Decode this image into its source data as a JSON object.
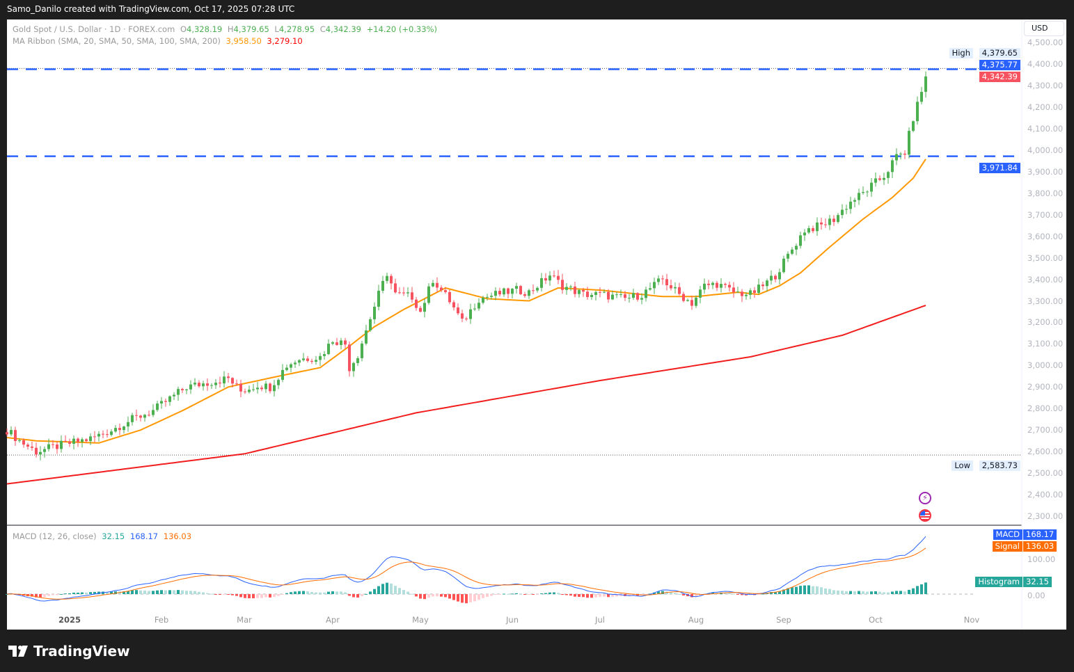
{
  "header": {
    "attribution": "Samo_Danilo created with TradingView.com, Oct 17, 2025 07:28 UTC"
  },
  "legend": {
    "symbol": "Gold Spot / U.S. Dollar · 1D · FOREX.com",
    "open_label": "O",
    "open": "4,328.19",
    "high_label": "H",
    "high": "4,379.65",
    "low_label": "L",
    "low": "4,278.95",
    "close_label": "C",
    "close": "4,342.39",
    "change": "+14.20 (+0.33%)",
    "ma_title": "MA Ribbon (SMA, 20, SMA, 50, SMA, 100, SMA, 200)",
    "ma20": "3,958.50",
    "ma200": "3,279.10"
  },
  "macd_legend": {
    "title": "MACD (12, 26, close)",
    "histogram": "32.15",
    "macd": "168.17",
    "signal": "136.03"
  },
  "price_axis": {
    "currency": "USD",
    "labels": [
      "4,500.00",
      "4,400.00",
      "4,300.00",
      "4,200.00",
      "4,100.00",
      "4,000.00",
      "3,900.00",
      "3,800.00",
      "3,700.00",
      "3,600.00",
      "3,500.00",
      "3,400.00",
      "3,300.00",
      "3,200.00",
      "3,100.00",
      "3,000.00",
      "2,900.00",
      "2,800.00",
      "2,700.00",
      "2,600.00",
      "2,500.00",
      "2,400.00",
      "2,300.00"
    ],
    "high_label": "High",
    "high_value": "4,379.65",
    "line1_value": "4,375.77",
    "last_price": "4,342.39",
    "line2_value": "3,971.84",
    "low_label": "Low",
    "low_value": "2,583.73"
  },
  "macd_axis": {
    "macd_label": "MACD",
    "macd_value": "168.17",
    "signal_label": "Signal",
    "signal_value": "136.03",
    "histogram_label": "Histogram",
    "histogram_value": "32.15",
    "labels": [
      "100.00",
      "0.00"
    ]
  },
  "time_axis": {
    "labels": [
      "2025",
      "Feb",
      "Mar",
      "Apr",
      "May",
      "Jun",
      "Jul",
      "Aug",
      "Sep",
      "Oct",
      "Nov"
    ]
  },
  "footer": {
    "brand": "TradingView"
  },
  "colors": {
    "up": "#4caf50",
    "down": "#f7525f",
    "sma20": "#ff9800",
    "sma200": "#f21d1d",
    "hline": "#2962ff",
    "macd": "#2962ff",
    "signal": "#ff6d00"
  },
  "chart_data": {
    "type": "candlestick",
    "title": "Gold Spot / U.S. Dollar · 1D",
    "x_unit": "trading-day index (0 = mid Dec 2024, 220 = Oct 16 2025)",
    "ylim": [
      2250,
      4520
    ],
    "close_anchors": [
      [
        0,
        2700
      ],
      [
        3,
        2650
      ],
      [
        7,
        2600
      ],
      [
        13,
        2630
      ],
      [
        20,
        2660
      ],
      [
        25,
        2700
      ],
      [
        30,
        2750
      ],
      [
        35,
        2790
      ],
      [
        40,
        2860
      ],
      [
        43,
        2900
      ],
      [
        48,
        2920
      ],
      [
        53,
        2940
      ],
      [
        56,
        2880
      ],
      [
        60,
        2910
      ],
      [
        63,
        2900
      ],
      [
        67,
        3000
      ],
      [
        70,
        3030
      ],
      [
        75,
        3040
      ],
      [
        78,
        3120
      ],
      [
        81,
        3100
      ],
      [
        82,
        2990
      ],
      [
        84,
        3050
      ],
      [
        87,
        3220
      ],
      [
        89,
        3330
      ],
      [
        91,
        3430
      ],
      [
        93,
        3330
      ],
      [
        97,
        3320
      ],
      [
        99,
        3250
      ],
      [
        102,
        3400
      ],
      [
        106,
        3300
      ],
      [
        109,
        3200
      ],
      [
        113,
        3310
      ],
      [
        117,
        3330
      ],
      [
        122,
        3350
      ],
      [
        125,
        3340
      ],
      [
        130,
        3420
      ],
      [
        133,
        3370
      ],
      [
        138,
        3330
      ],
      [
        142,
        3330
      ],
      [
        145,
        3320
      ],
      [
        148,
        3310
      ],
      [
        152,
        3330
      ],
      [
        157,
        3400
      ],
      [
        161,
        3330
      ],
      [
        164,
        3290
      ],
      [
        167,
        3370
      ],
      [
        170,
        3380
      ],
      [
        174,
        3340
      ],
      [
        178,
        3330
      ],
      [
        181,
        3370
      ],
      [
        184,
        3420
      ],
      [
        188,
        3540
      ],
      [
        191,
        3630
      ],
      [
        195,
        3650
      ],
      [
        198,
        3680
      ],
      [
        202,
        3760
      ],
      [
        205,
        3800
      ],
      [
        208,
        3850
      ],
      [
        210,
        3880
      ],
      [
        213,
        3970
      ],
      [
        215,
        3990
      ],
      [
        217,
        4150
      ],
      [
        218,
        4210
      ],
      [
        220,
        4342.39
      ]
    ],
    "sma20_anchors": [
      [
        0,
        2665
      ],
      [
        7,
        2650
      ],
      [
        22,
        2640
      ],
      [
        32,
        2700
      ],
      [
        42,
        2790
      ],
      [
        53,
        2900
      ],
      [
        65,
        2950
      ],
      [
        75,
        2990
      ],
      [
        82,
        3090
      ],
      [
        88,
        3180
      ],
      [
        95,
        3260
      ],
      [
        100,
        3310
      ],
      [
        105,
        3360
      ],
      [
        115,
        3310
      ],
      [
        125,
        3300
      ],
      [
        132,
        3360
      ],
      [
        142,
        3350
      ],
      [
        157,
        3320
      ],
      [
        165,
        3320
      ],
      [
        175,
        3340
      ],
      [
        180,
        3330
      ],
      [
        185,
        3370
      ],
      [
        190,
        3430
      ],
      [
        197,
        3550
      ],
      [
        205,
        3680
      ],
      [
        212,
        3780
      ],
      [
        217,
        3870
      ],
      [
        220,
        3958.5
      ]
    ],
    "sma200_anchors": [
      [
        0,
        2450
      ],
      [
        57,
        2590
      ],
      [
        98,
        2780
      ],
      [
        142,
        2930
      ],
      [
        178,
        3040
      ],
      [
        200,
        3140
      ],
      [
        220,
        3279.1
      ]
    ],
    "horizontal_lines": [
      4375.77,
      3971.84
    ],
    "high": 4379.65,
    "low": 2583.73,
    "macd": {
      "fast": 12,
      "slow": 26,
      "signal": 9,
      "last_macd": 168.17,
      "last_signal": 136.03,
      "last_histogram": 32.15
    }
  }
}
